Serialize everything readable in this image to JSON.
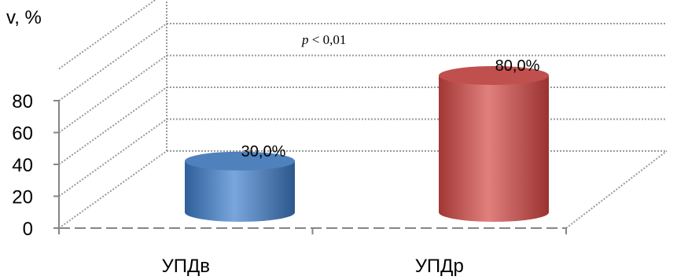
{
  "chart_data": {
    "type": "bar",
    "style": "3d-cylinder",
    "ylabel": "v, %",
    "annotation": {
      "p_symbol": "p",
      "text": " < 0,01"
    },
    "ylim": [
      0,
      80
    ],
    "yticks": [
      "0",
      "20",
      "40",
      "60",
      "80"
    ],
    "categories": [
      "УПДв",
      "УПДр"
    ],
    "values": [
      30,
      80
    ],
    "data_labels": [
      "30,0%",
      "80,0%"
    ],
    "colors": [
      "#4f81bd",
      "#c0504d"
    ],
    "grid": true
  }
}
